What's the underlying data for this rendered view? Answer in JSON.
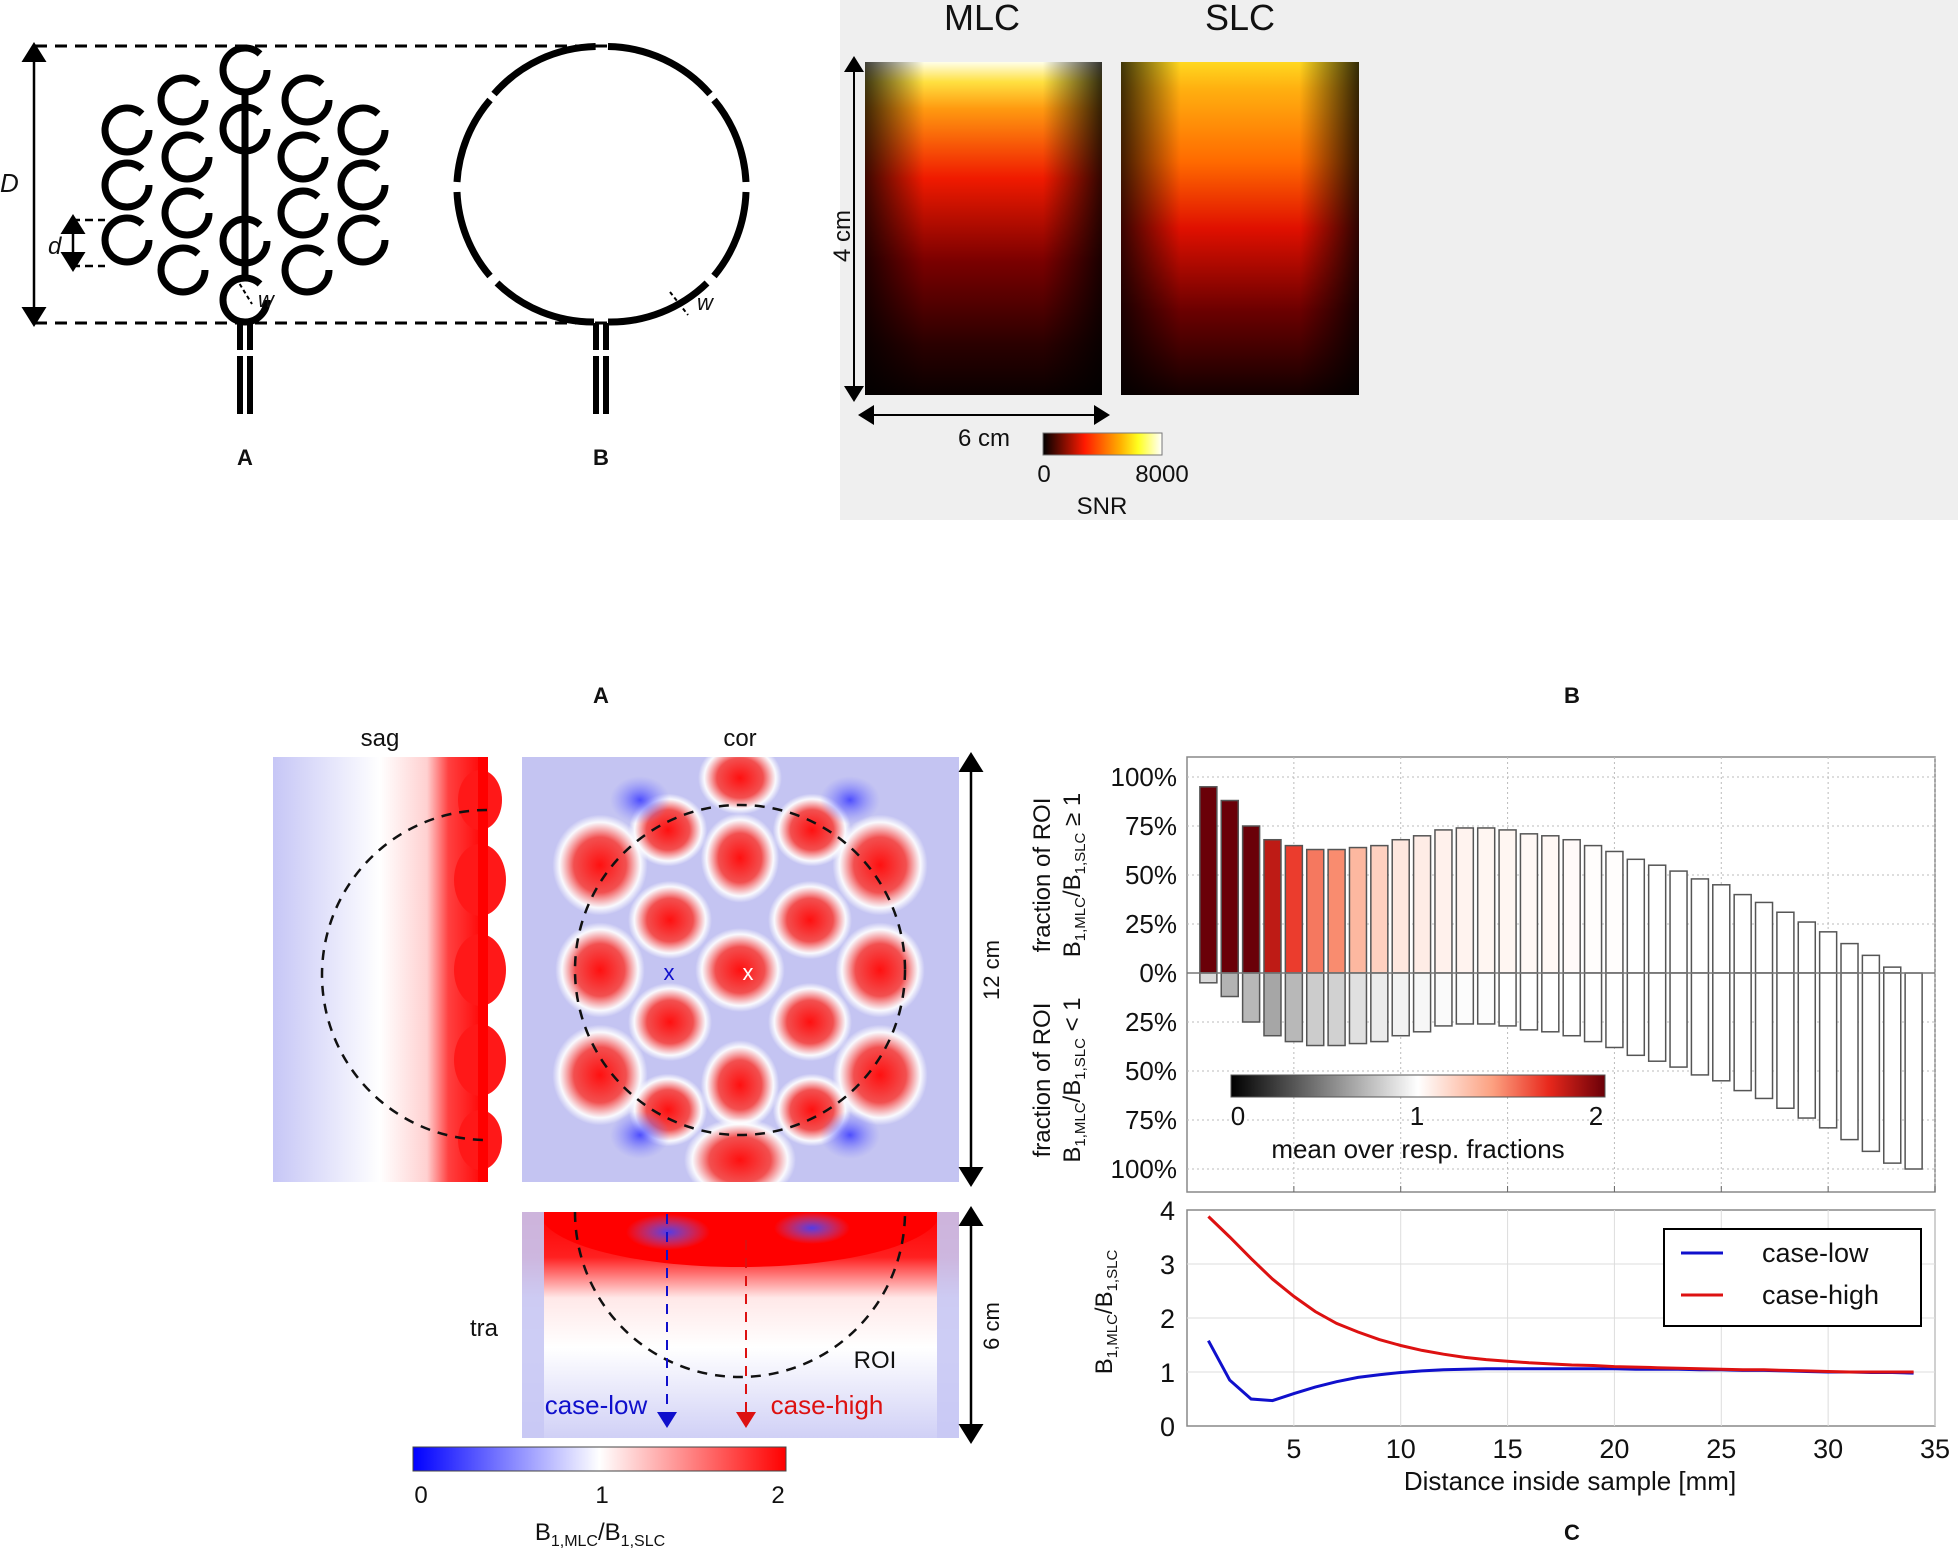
{
  "figure_top": {
    "coil_diagram": {
      "labels": {
        "D": "D",
        "d": "d",
        "w_left": "w",
        "w_right": "w"
      },
      "panel_A": "A",
      "panel_B": "B"
    },
    "snr_maps": {
      "title_left": "MLC",
      "title_right": "SLC",
      "height_label": "4 cm",
      "width_label": "6 cm",
      "colorbar": {
        "min": "0",
        "max": "8000",
        "label": "SNR",
        "colormap": "hot"
      }
    }
  },
  "figure_bottom": {
    "panel_A": {
      "label": "A",
      "views": {
        "sag": "sag",
        "cor": "cor",
        "tra": "tra"
      },
      "cor_size_label": "12 cm",
      "tra_size_label": "6 cm",
      "roi_label": "ROI",
      "marker_low": "x",
      "marker_high": "x",
      "case_low_label": "case-low",
      "case_high_label": "case-high",
      "colorbar": {
        "min": "0",
        "mid": "1",
        "max": "2",
        "label_main": "B",
        "label_sub1": "1,MLC",
        "label_slash": "/B",
        "label_sub2": "1,SLC",
        "low_color": "#0000ff",
        "mid_color": "#ffffff",
        "high_color": "#ff0000"
      }
    },
    "panel_B_label": "B",
    "panel_C_label": "C",
    "colors": {
      "case_low": "#1010cc",
      "case_high": "#dd1111"
    }
  },
  "chart_data": [
    {
      "type": "bar",
      "title": "B",
      "ylabel_top": "fraction of ROI B1,MLC/B1,SLC ≥ 1",
      "ylabel_bottom": "fraction of ROI B1,MLC/B1,SLC < 1",
      "ylabel_top_line1": "fraction of ROI",
      "ylabel_bottom_line1": "fraction of ROI",
      "yticks_top": [
        "100%",
        "75%",
        "50%",
        "25%",
        "0%"
      ],
      "yticks_bottom": [
        "25%",
        "50%",
        "75%",
        "100%"
      ],
      "xlim": [
        0,
        35
      ],
      "ylim_top": [
        0,
        100
      ],
      "ylim_bottom": [
        0,
        100
      ],
      "grid": true,
      "x": [
        1,
        2,
        3,
        4,
        5,
        6,
        7,
        8,
        9,
        10,
        11,
        12,
        13,
        14,
        15,
        16,
        17,
        18,
        19,
        20,
        21,
        22,
        23,
        24,
        25,
        26,
        27,
        28,
        29,
        30,
        31,
        32,
        33,
        34
      ],
      "series": [
        {
          "name": "fraction >= 1 (%)",
          "values": [
            95,
            88,
            75,
            68,
            65,
            63,
            63,
            64,
            65,
            68,
            70,
            73,
            74,
            74,
            73,
            71,
            70,
            68,
            65,
            62,
            58,
            55,
            52,
            48,
            45,
            40,
            36,
            31,
            26,
            21,
            15,
            9,
            3,
            0
          ],
          "mean_ratio": [
            2.0,
            2.0,
            2.0,
            1.8,
            1.65,
            1.5,
            1.45,
            1.3,
            1.2,
            1.1,
            1.08,
            1.06,
            1.05,
            1.04,
            1.04,
            1.03,
            1.03,
            1.02,
            1.01,
            1.01,
            1.0,
            1.0,
            1.0,
            1.0,
            1.0,
            1.0,
            1.0,
            1.0,
            1.0,
            1.0,
            1.0,
            1.0,
            1.0,
            1.0
          ]
        },
        {
          "name": "fraction < 1 (%)",
          "values": [
            5,
            12,
            25,
            32,
            35,
            37,
            37,
            36,
            35,
            32,
            30,
            27,
            26,
            26,
            27,
            29,
            30,
            32,
            35,
            38,
            42,
            45,
            48,
            52,
            55,
            60,
            64,
            69,
            74,
            79,
            85,
            91,
            97,
            100
          ],
          "mean_ratio": [
            0.85,
            0.7,
            0.72,
            0.65,
            0.72,
            0.8,
            0.82,
            0.88,
            0.92,
            0.95,
            0.97,
            0.98,
            0.99,
            0.99,
            1.0,
            1.0,
            1.0,
            1.0,
            1.0,
            1.0,
            1.0,
            1.0,
            1.0,
            1.0,
            1.0,
            1.0,
            1.0,
            1.0,
            1.0,
            1.0,
            1.0,
            1.0,
            1.0,
            1.0
          ]
        }
      ],
      "colorbar": {
        "min": "0",
        "mid": "1",
        "max": "2",
        "label": "mean over resp. fractions"
      }
    },
    {
      "type": "line",
      "title": "C",
      "xlabel": "Distance inside sample [mm]",
      "ylabel": "B1,MLC/B1,SLC",
      "xlim": [
        0,
        35
      ],
      "ylim": [
        0,
        4
      ],
      "xticks": [
        "5",
        "10",
        "15",
        "20",
        "25",
        "30",
        "35"
      ],
      "yticks": [
        "0",
        "1",
        "2",
        "3",
        "4"
      ],
      "grid": true,
      "legend": {
        "position": "top-right",
        "entries": [
          "case-low",
          "case-high"
        ]
      },
      "x": [
        1,
        2,
        3,
        4,
        5,
        6,
        7,
        8,
        9,
        10,
        11,
        12,
        13,
        14,
        15,
        16,
        17,
        18,
        19,
        20,
        21,
        22,
        23,
        24,
        25,
        26,
        27,
        28,
        29,
        30,
        31,
        32,
        33,
        34
      ],
      "series": [
        {
          "name": "case-low",
          "values": [
            1.58,
            0.85,
            0.5,
            0.47,
            0.6,
            0.72,
            0.82,
            0.9,
            0.95,
            0.99,
            1.02,
            1.04,
            1.05,
            1.06,
            1.06,
            1.06,
            1.06,
            1.06,
            1.06,
            1.06,
            1.05,
            1.05,
            1.05,
            1.04,
            1.04,
            1.03,
            1.03,
            1.02,
            1.01,
            1.0,
            1.0,
            0.99,
            0.99,
            0.98
          ]
        },
        {
          "name": "case-high",
          "values": [
            3.88,
            3.5,
            3.1,
            2.72,
            2.4,
            2.12,
            1.9,
            1.74,
            1.6,
            1.49,
            1.4,
            1.33,
            1.27,
            1.23,
            1.2,
            1.17,
            1.15,
            1.13,
            1.12,
            1.1,
            1.09,
            1.08,
            1.07,
            1.06,
            1.05,
            1.04,
            1.04,
            1.03,
            1.02,
            1.01,
            1.0,
            1.0,
            1.0,
            1.0
          ]
        }
      ]
    }
  ]
}
